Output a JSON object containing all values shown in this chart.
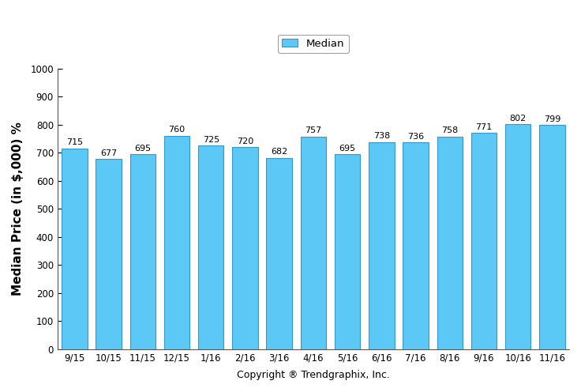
{
  "categories": [
    "9/15",
    "10/15",
    "11/15",
    "12/15",
    "1/16",
    "2/16",
    "3/16",
    "4/16",
    "5/16",
    "6/16",
    "7/16",
    "8/16",
    "9/16",
    "10/16",
    "11/16"
  ],
  "values": [
    715,
    677,
    695,
    760,
    725,
    720,
    682,
    757,
    695,
    738,
    736,
    758,
    771,
    802,
    799
  ],
  "bar_color": "#5BC8F5",
  "bar_edge_color": "#3399CC",
  "ylabel": "Median Price (in $,000) %",
  "xlabel": "Copyright ® Trendgraphix, Inc.",
  "ylim": [
    0,
    1000
  ],
  "yticks": [
    0,
    100,
    200,
    300,
    400,
    500,
    600,
    700,
    800,
    900,
    1000
  ],
  "legend_label": "Median",
  "legend_facecolor": "#5BC8F5",
  "legend_edgecolor": "#3399CC",
  "background_color": "#ffffff",
  "bar_label_fontsize": 8.0,
  "ylabel_fontsize": 11,
  "xlabel_fontsize": 9,
  "tick_fontsize": 8.5,
  "bar_width": 0.75
}
